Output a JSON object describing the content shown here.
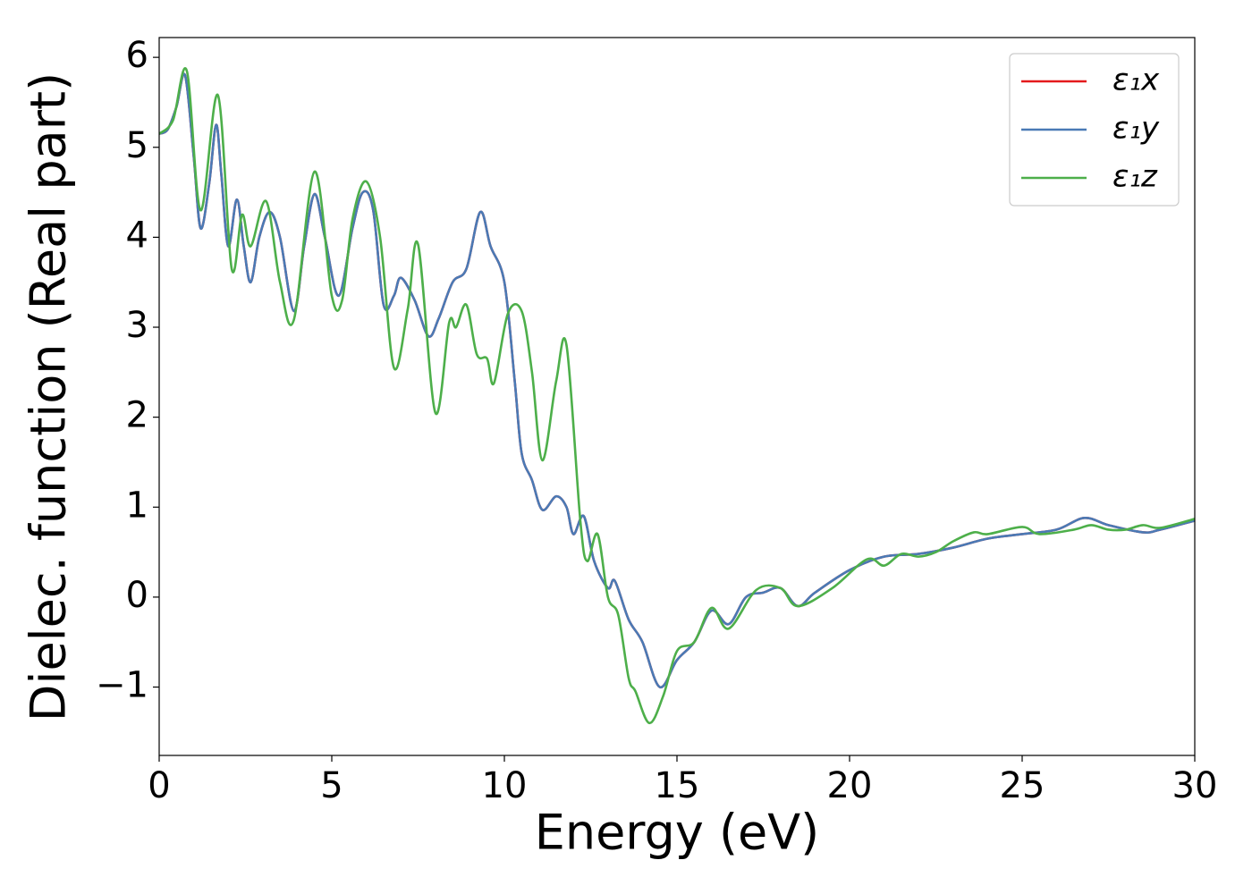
{
  "chart_data": {
    "type": "line",
    "xlabel": "Energy (eV)",
    "ylabel": "Dielec. function (Real part)",
    "xlim": [
      0,
      30
    ],
    "xticks": [
      0,
      5,
      10,
      15,
      20,
      25,
      30
    ],
    "ylim": [
      -1.76,
      6.22
    ],
    "yticks": [
      {
        "value": -1,
        "label": "−1"
      },
      0,
      1,
      2,
      3,
      4,
      5,
      6
    ],
    "legend": "upper right",
    "series": [
      {
        "name": "ε₁x",
        "color": "#e41a1c",
        "x": [
          0,
          0.25,
          0.5,
          0.75,
          1.0,
          1.2,
          1.45,
          1.65,
          1.8,
          2.0,
          2.25,
          2.45,
          2.65,
          2.9,
          3.2,
          3.5,
          3.9,
          4.2,
          4.5,
          4.8,
          5.2,
          5.6,
          5.9,
          6.2,
          6.5,
          6.8,
          7.0,
          7.4,
          7.8,
          8.1,
          8.5,
          8.9,
          9.3,
          9.6,
          10.0,
          10.3,
          10.5,
          10.8,
          11.1,
          11.5,
          11.8,
          12.0,
          12.3,
          12.6,
          13.0,
          13.2,
          13.6,
          14.0,
          14.5,
          15.0,
          15.5,
          16.0,
          16.5,
          17.0,
          17.5,
          18.0,
          18.5,
          19.0,
          20.0,
          21.0,
          22.0,
          23.0,
          24.0,
          25.0,
          26.0,
          26.8,
          27.5,
          28.5,
          29.0,
          30.0
        ],
        "values": [
          5.15,
          5.2,
          5.45,
          5.8,
          4.9,
          4.1,
          4.6,
          5.25,
          4.7,
          3.9,
          4.42,
          3.9,
          3.5,
          4.0,
          4.28,
          4.0,
          3.18,
          3.9,
          4.48,
          4.0,
          3.35,
          4.1,
          4.5,
          4.3,
          3.25,
          3.35,
          3.55,
          3.3,
          2.9,
          3.1,
          3.5,
          3.65,
          4.28,
          3.9,
          3.5,
          2.4,
          1.6,
          1.3,
          0.97,
          1.12,
          1.0,
          0.7,
          0.9,
          0.4,
          0.1,
          0.18,
          -0.25,
          -0.5,
          -1.0,
          -0.7,
          -0.5,
          -0.15,
          -0.3,
          0.0,
          0.05,
          0.1,
          -0.1,
          0.05,
          0.3,
          0.45,
          0.48,
          0.55,
          0.65,
          0.7,
          0.75,
          0.88,
          0.8,
          0.72,
          0.75,
          0.85
        ]
      },
      {
        "name": "ε₁y",
        "color": "#4a7ab5",
        "x": [
          0,
          0.25,
          0.5,
          0.75,
          1.0,
          1.2,
          1.45,
          1.65,
          1.8,
          2.0,
          2.25,
          2.45,
          2.65,
          2.9,
          3.2,
          3.5,
          3.9,
          4.2,
          4.5,
          4.8,
          5.2,
          5.6,
          5.9,
          6.2,
          6.5,
          6.8,
          7.0,
          7.4,
          7.8,
          8.1,
          8.5,
          8.9,
          9.3,
          9.6,
          10.0,
          10.3,
          10.5,
          10.8,
          11.1,
          11.5,
          11.8,
          12.0,
          12.3,
          12.6,
          13.0,
          13.2,
          13.6,
          14.0,
          14.5,
          15.0,
          15.5,
          16.0,
          16.5,
          17.0,
          17.5,
          18.0,
          18.5,
          19.0,
          20.0,
          21.0,
          22.0,
          23.0,
          24.0,
          25.0,
          26.0,
          26.8,
          27.5,
          28.5,
          29.0,
          30.0
        ],
        "values": [
          5.15,
          5.2,
          5.45,
          5.8,
          4.9,
          4.1,
          4.6,
          5.25,
          4.7,
          3.9,
          4.42,
          3.9,
          3.5,
          4.0,
          4.28,
          4.0,
          3.18,
          3.9,
          4.48,
          4.0,
          3.35,
          4.1,
          4.5,
          4.3,
          3.25,
          3.35,
          3.55,
          3.3,
          2.9,
          3.1,
          3.5,
          3.65,
          4.28,
          3.9,
          3.5,
          2.4,
          1.6,
          1.3,
          0.97,
          1.12,
          1.0,
          0.7,
          0.9,
          0.4,
          0.1,
          0.18,
          -0.25,
          -0.5,
          -1.0,
          -0.7,
          -0.5,
          -0.15,
          -0.3,
          0.0,
          0.05,
          0.1,
          -0.1,
          0.05,
          0.3,
          0.45,
          0.48,
          0.55,
          0.65,
          0.7,
          0.75,
          0.88,
          0.8,
          0.72,
          0.75,
          0.85
        ]
      },
      {
        "name": "ε₁z",
        "color": "#4daf4a",
        "x": [
          0,
          0.4,
          0.8,
          1.2,
          1.7,
          2.1,
          2.4,
          2.65,
          3.1,
          3.5,
          3.9,
          4.5,
          5.0,
          5.3,
          5.6,
          6.0,
          6.4,
          6.8,
          7.2,
          7.5,
          8.0,
          8.4,
          8.6,
          8.9,
          9.2,
          9.5,
          9.7,
          10.1,
          10.5,
          10.8,
          11.1,
          11.5,
          11.8,
          12.2,
          12.4,
          12.7,
          13.0,
          13.3,
          13.6,
          13.8,
          14.2,
          14.6,
          15.0,
          15.5,
          16.0,
          16.5,
          17.3,
          18.0,
          18.5,
          19.5,
          20.5,
          21.0,
          21.5,
          22.0,
          22.5,
          23.0,
          23.6,
          24.0,
          25.0,
          25.5,
          26.5,
          27.0,
          27.5,
          28.0,
          28.5,
          29.0,
          30.0
        ],
        "values": [
          5.15,
          5.3,
          5.85,
          4.3,
          5.58,
          3.65,
          4.25,
          3.9,
          4.4,
          3.5,
          3.08,
          4.73,
          3.35,
          3.3,
          4.2,
          4.62,
          4.0,
          2.55,
          3.2,
          3.92,
          2.05,
          3.05,
          3.0,
          3.25,
          2.7,
          2.65,
          2.38,
          3.15,
          3.18,
          2.5,
          1.52,
          2.4,
          2.8,
          0.85,
          0.4,
          0.7,
          0.0,
          -0.2,
          -0.9,
          -1.05,
          -1.4,
          -1.1,
          -0.6,
          -0.5,
          -0.12,
          -0.35,
          0.08,
          0.1,
          -0.1,
          0.1,
          0.42,
          0.35,
          0.48,
          0.45,
          0.5,
          0.62,
          0.72,
          0.7,
          0.78,
          0.7,
          0.75,
          0.8,
          0.75,
          0.75,
          0.8,
          0.77,
          0.87
        ]
      }
    ]
  }
}
